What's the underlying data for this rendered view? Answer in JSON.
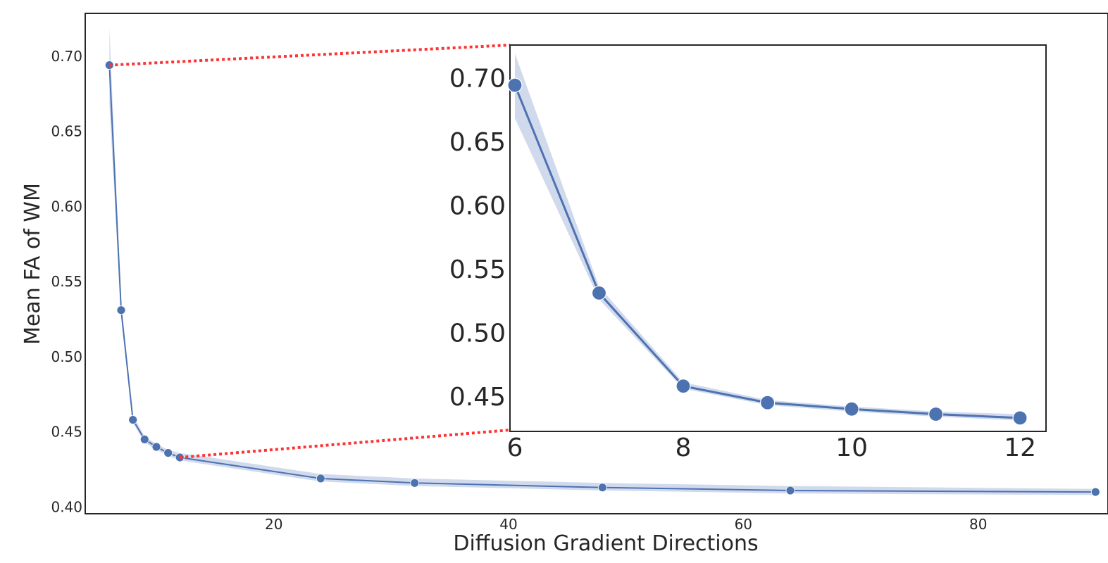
{
  "chart_data": [
    {
      "type": "line",
      "xlabel": "Diffusion Gradient Directions",
      "ylabel": "Mean FA of WM",
      "xlim": [
        4,
        91
      ],
      "ylim": [
        0.396,
        0.728
      ],
      "xticks": [
        20,
        40,
        60,
        80
      ],
      "yticks": [
        0.4,
        0.45,
        0.5,
        0.55,
        0.6,
        0.65,
        0.7
      ],
      "ytick_labels": [
        "0.40",
        "0.45",
        "0.50",
        "0.55",
        "0.60",
        "0.65",
        "0.70"
      ],
      "grid": false,
      "series": [
        {
          "x": [
            6,
            7,
            8,
            9,
            10,
            11,
            12,
            24,
            32,
            48,
            64,
            90
          ],
          "y": [
            0.694,
            0.531,
            0.458,
            0.445,
            0.44,
            0.436,
            0.433,
            0.419,
            0.416,
            0.413,
            0.411,
            0.41
          ],
          "y_lower": [
            0.668,
            0.526,
            0.456,
            0.443,
            0.438,
            0.434,
            0.431,
            0.417,
            0.414,
            0.411,
            0.409,
            0.408
          ],
          "y_upper": [
            0.719,
            0.536,
            0.461,
            0.447,
            0.442,
            0.438,
            0.436,
            0.422,
            0.419,
            0.416,
            0.414,
            0.412
          ]
        }
      ],
      "color": "#4c72b0",
      "band_color": "#c9d4ea"
    },
    {
      "type": "line",
      "role": "zoom inset of x 6–12",
      "xlim": [
        5.95,
        12.3
      ],
      "ylim": [
        0.423,
        0.725
      ],
      "xticks": [
        6,
        8,
        10,
        12
      ],
      "yticks": [
        0.45,
        0.5,
        0.55,
        0.6,
        0.65,
        0.7
      ],
      "ytick_labels": [
        "0.45",
        "0.50",
        "0.55",
        "0.60",
        "0.65",
        "0.70"
      ],
      "grid": false,
      "series": [
        {
          "x": [
            6,
            7,
            8,
            9,
            10,
            11,
            12
          ],
          "y": [
            0.694,
            0.531,
            0.458,
            0.445,
            0.44,
            0.436,
            0.433
          ],
          "y_lower": [
            0.668,
            0.526,
            0.456,
            0.443,
            0.438,
            0.434,
            0.431
          ],
          "y_upper": [
            0.719,
            0.536,
            0.461,
            0.447,
            0.442,
            0.438,
            0.436
          ]
        }
      ],
      "color": "#4c72b0",
      "band_color": "#c9d4ea",
      "connector_color": "#ff3333"
    }
  ]
}
